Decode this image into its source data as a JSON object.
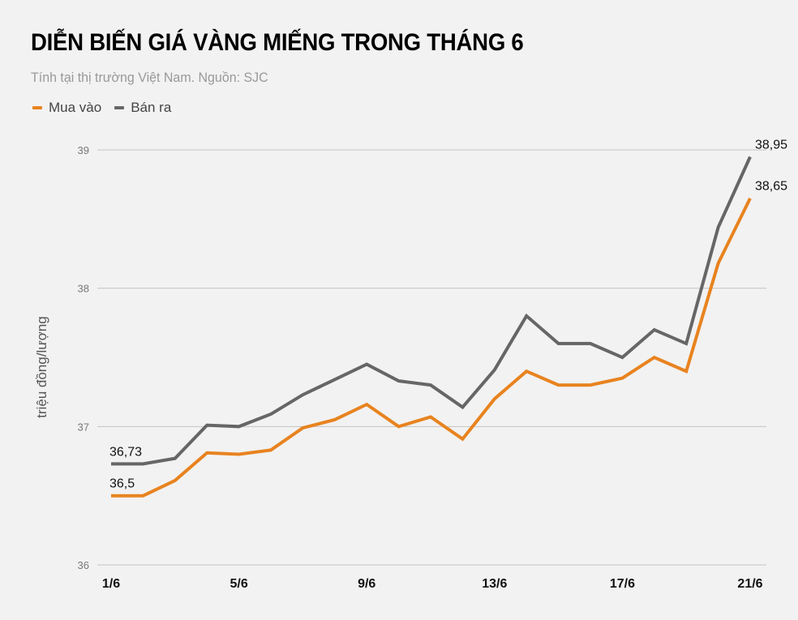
{
  "header": {
    "title": "DIỄN BIẾN GIÁ VÀNG MIẾNG TRONG THÁNG 6",
    "subtitle": "Tính tại thị trường Việt Nam. Nguồn: SJC"
  },
  "legend": [
    {
      "label": "Mua vào",
      "color": "#e8831f"
    },
    {
      "label": "Bán ra",
      "color": "#666666"
    }
  ],
  "axis": {
    "ylabel": "triệu đồng/lượng"
  },
  "chart_data": {
    "type": "line",
    "title": "DIỄN BIẾN GIÁ VÀNG MIẾNG TRONG THÁNG 6",
    "subtitle": "Tính tại thị trường Việt Nam. Nguồn: SJC",
    "xlabel": "",
    "ylabel": "triệu đồng/lượng",
    "ylim": [
      36,
      39
    ],
    "yticks": [
      36,
      37,
      38,
      39
    ],
    "x": [
      "1/6",
      "2/6",
      "3/6",
      "4/6",
      "5/6",
      "6/6",
      "7/6",
      "8/6",
      "9/6",
      "10/6",
      "11/6",
      "12/6",
      "13/6",
      "14/6",
      "15/6",
      "16/6",
      "17/6",
      "18/6",
      "19/6",
      "20/6",
      "21/6"
    ],
    "xtick_labels": [
      "1/6",
      "5/6",
      "9/6",
      "13/6",
      "17/6",
      "21/6"
    ],
    "grid": "horizontal",
    "legend_position": "top-left",
    "series": [
      {
        "name": "Mua vào",
        "color": "#e8831f",
        "values": [
          36.5,
          36.5,
          36.61,
          36.81,
          36.8,
          36.83,
          36.99,
          37.05,
          37.16,
          37.0,
          37.07,
          36.91,
          37.2,
          37.4,
          37.3,
          37.3,
          37.35,
          37.5,
          37.4,
          38.18,
          38.65
        ]
      },
      {
        "name": "Bán ra",
        "color": "#666666",
        "values": [
          36.73,
          36.73,
          36.77,
          37.01,
          37.0,
          37.09,
          37.23,
          37.34,
          37.45,
          37.33,
          37.3,
          37.14,
          37.41,
          37.8,
          37.6,
          37.6,
          37.5,
          37.7,
          37.6,
          38.44,
          38.95
        ]
      }
    ],
    "annotations": [
      {
        "series": "Bán ra",
        "index": 0,
        "text": "36,73"
      },
      {
        "series": "Mua vào",
        "index": 0,
        "text": "36,5"
      },
      {
        "series": "Bán ra",
        "index": 20,
        "text": "38,95"
      },
      {
        "series": "Mua vào",
        "index": 20,
        "text": "38,65"
      }
    ]
  }
}
